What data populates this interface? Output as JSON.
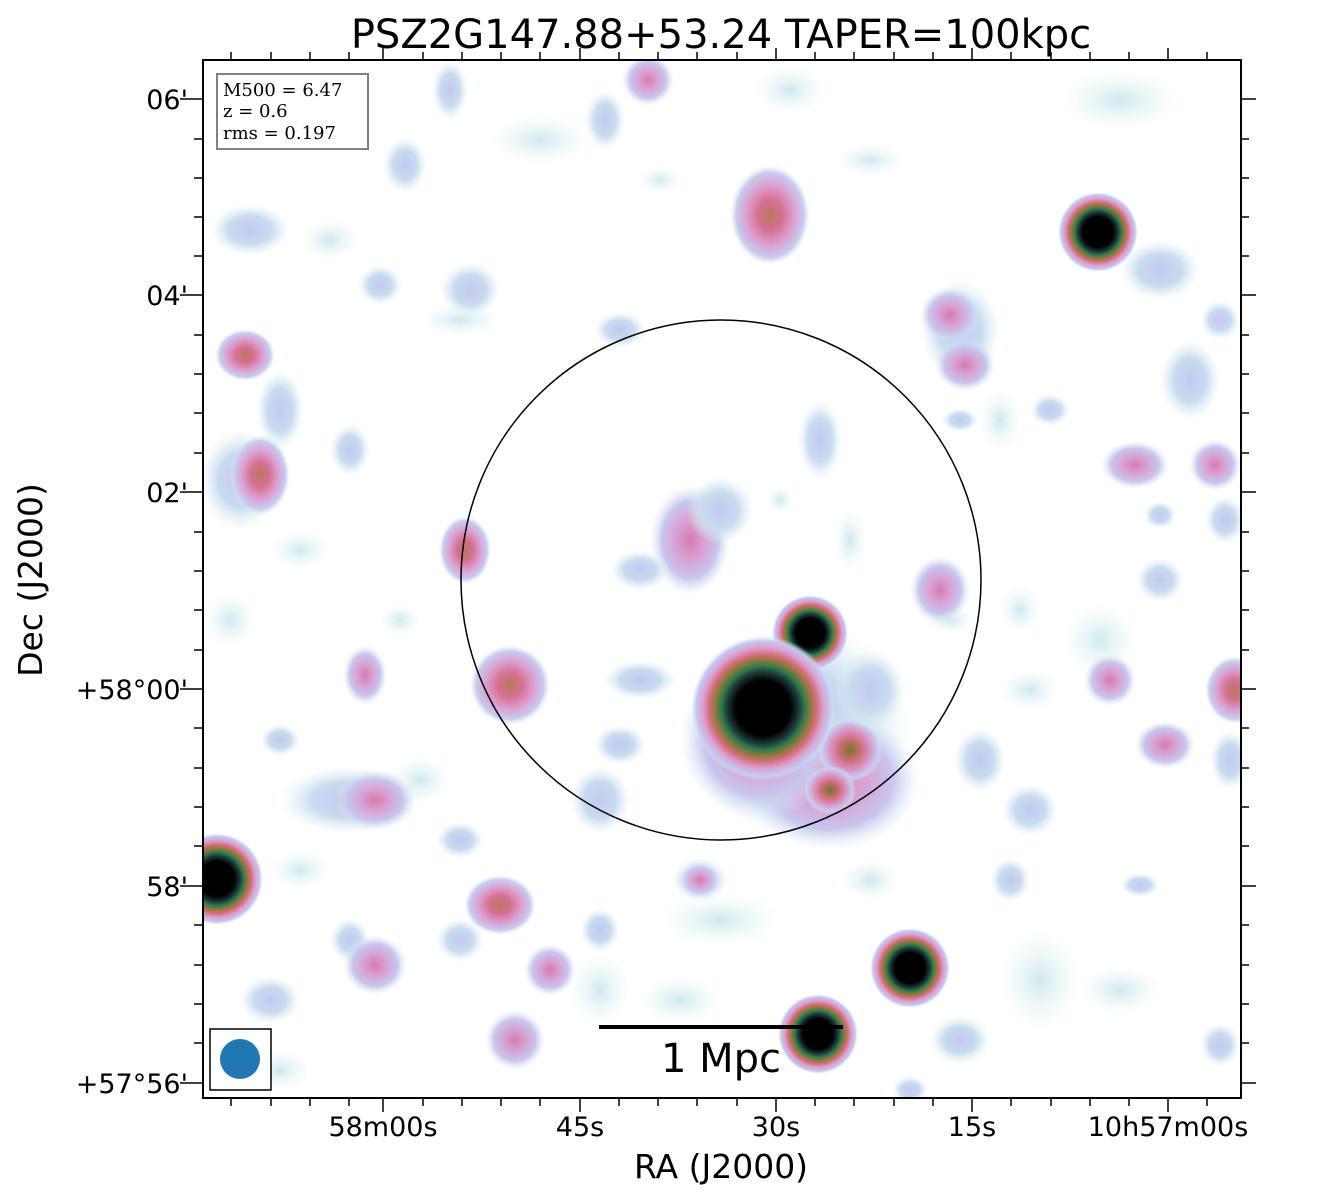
{
  "title": "PSZ2G147.88+53.24 TAPER=100kpc",
  "axes": {
    "xlabel": "RA (J2000)",
    "ylabel": "Dec (J2000)",
    "x_ticks": [
      "58m00s",
      "45s",
      "30s",
      "15s",
      "10h57m00s"
    ],
    "y_ticks": [
      "06'",
      "04'",
      "02'",
      "+58°00'",
      "58'",
      "+57°56'"
    ]
  },
  "info_box": {
    "lines": [
      "M500 = 6.47",
      "z = 0.6",
      "rms = 0.197"
    ]
  },
  "scale_bar": {
    "label": "1 Mpc"
  },
  "colors": {
    "beam": "#1f77b4",
    "frame": "#000000",
    "info_border": "#808080"
  }
}
